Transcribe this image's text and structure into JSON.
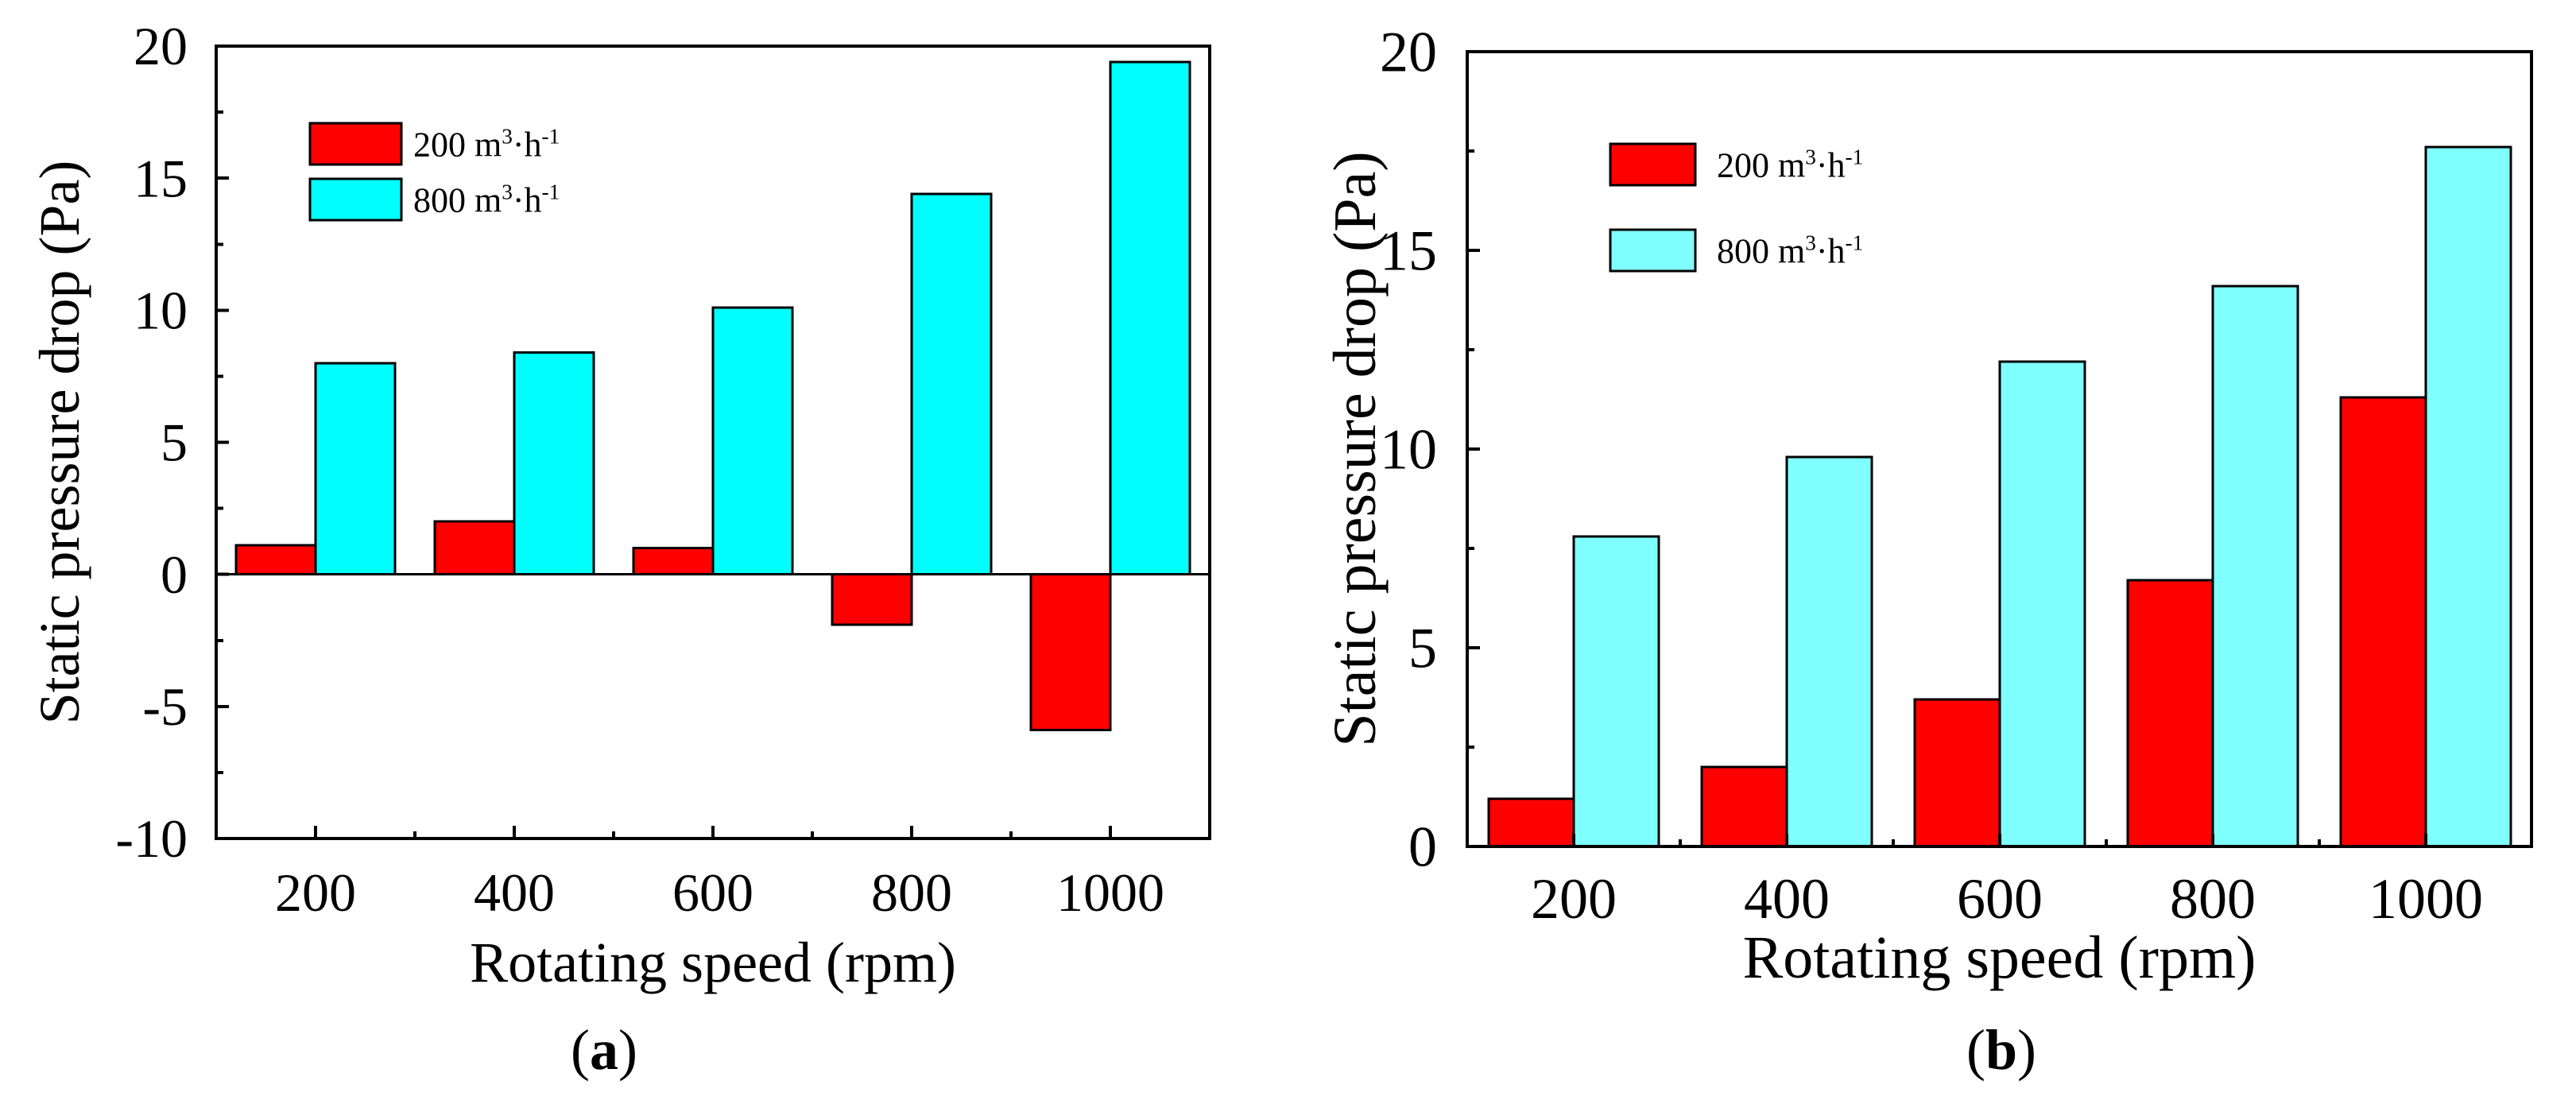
{
  "colors": {
    "series_200": "#ff0000",
    "series_800a": "#00ffff",
    "series_800b": "#80ffff",
    "axis": "#000000"
  },
  "chart_data": [
    {
      "panel_id": "a",
      "type": "bar",
      "title": "",
      "panel_label": {
        "open": "(",
        "letter": "a",
        "close": ")"
      },
      "xlabel": "Rotating speed (rpm)",
      "ylabel": "Static pressure drop (Pa)",
      "categories": [
        "200",
        "400",
        "600",
        "800",
        "1000"
      ],
      "ylim": [
        -10,
        20
      ],
      "yticks": [
        -10,
        -5,
        0,
        5,
        10,
        15,
        20
      ],
      "ytick_labels": [
        "-10",
        "-5",
        "0",
        "5",
        "10",
        "15",
        "20"
      ],
      "grid": false,
      "legend_position": "top-left",
      "series": [
        {
          "name": "200 m³·h⁻¹",
          "legend": {
            "base": "200 m",
            "sup1": "3",
            "mid": "·h",
            "sup2": "-1"
          },
          "color": "#ff0000",
          "values": [
            1.1,
            2.0,
            1.0,
            -1.9,
            -5.9
          ]
        },
        {
          "name": "800 m³·h⁻¹",
          "legend": {
            "base": "800 m",
            "sup1": "3",
            "mid": "·h",
            "sup2": "-1"
          },
          "color": "#00ffff",
          "values": [
            8.0,
            8.4,
            10.1,
            14.4,
            19.4
          ]
        }
      ]
    },
    {
      "panel_id": "b",
      "type": "bar",
      "title": "",
      "panel_label": {
        "open": "(",
        "letter": "b",
        "close": ")"
      },
      "xlabel": "Rotating speed (rpm)",
      "ylabel": "Static pressure drop (Pa)",
      "categories": [
        "200",
        "400",
        "600",
        "800",
        "1000"
      ],
      "ylim": [
        0,
        20
      ],
      "yticks": [
        0,
        5,
        10,
        15,
        20
      ],
      "ytick_labels": [
        "0",
        "5",
        "10",
        "15",
        "20"
      ],
      "grid": false,
      "legend_position": "top-left",
      "series": [
        {
          "name": "200 m³·h⁻¹",
          "legend": {
            "base": "200 m",
            "sup1": "3",
            "mid": "·h",
            "sup2": "-1"
          },
          "color": "#ff0000",
          "values": [
            1.2,
            2.0,
            3.7,
            6.7,
            11.3
          ]
        },
        {
          "name": "800 m³·h⁻¹",
          "legend": {
            "base": "800 m",
            "sup1": "3",
            "mid": "·h",
            "sup2": "-1"
          },
          "color": "#80ffff",
          "values": [
            7.8,
            9.8,
            12.2,
            14.1,
            17.6
          ]
        }
      ]
    }
  ]
}
